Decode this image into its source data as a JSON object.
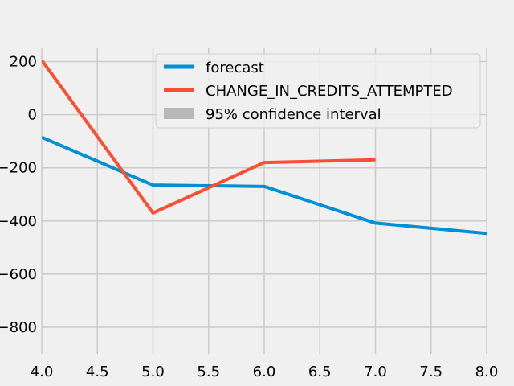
{
  "chart_data": {
    "type": "line",
    "title": "",
    "xlabel": "",
    "ylabel": "",
    "xlim": [
      4.0,
      8.0
    ],
    "ylim": [
      -900,
      250
    ],
    "grid": true,
    "x_ticks": [
      4.0,
      4.5,
      5.0,
      5.5,
      6.0,
      6.5,
      7.0,
      7.5,
      8.0
    ],
    "x_tick_labels": [
      "4.0",
      "4.5",
      "5.0",
      "5.5",
      "6.0",
      "6.5",
      "7.0",
      "7.5",
      "8.0"
    ],
    "y_ticks": [
      200,
      0,
      -200,
      -400,
      -600,
      -800
    ],
    "y_tick_labels": [
      "200",
      "0",
      "−200",
      "−400",
      "−600",
      "−800"
    ],
    "legend_position": "top-right",
    "series": [
      {
        "name": "forecast",
        "color": "#008fd5",
        "x": [
          4,
          5,
          6,
          7,
          8
        ],
        "y": [
          -85,
          -265,
          -270,
          -408,
          -447
        ]
      },
      {
        "name": "CHANGE_IN_CREDITS_ATTEMPTED",
        "color": "#fc4f30",
        "x": [
          4,
          5,
          6,
          7
        ],
        "y": [
          205,
          -370,
          -180,
          -170
        ]
      }
    ],
    "confidence_interval": {
      "name": "95% confidence interval",
      "color": "#b8b8b8"
    }
  }
}
